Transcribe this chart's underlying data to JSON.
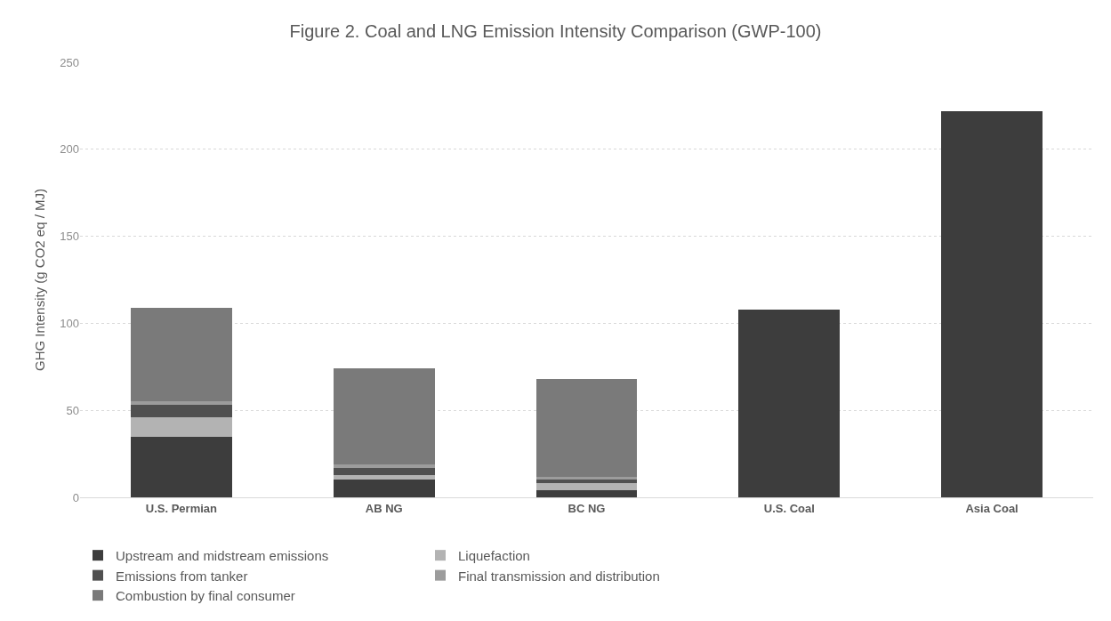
{
  "chart_data": {
    "type": "bar",
    "title": "Figure 2. Coal and LNG Emission Intensity Comparison (GWP-100)",
    "ylabel": "GHG Intensity (g CO2 eq / MJ)",
    "categories": [
      "U.S. Permian",
      "AB NG",
      "BC NG",
      "U.S. Coal",
      "Asia Coal"
    ],
    "stacked": true,
    "series": [
      {
        "name": "Upstream and midstream emissions",
        "color": "#3d3d3d",
        "values": [
          35,
          10,
          4,
          108,
          222
        ]
      },
      {
        "name": "Liquefaction",
        "color": "#b3b3b3",
        "values": [
          11,
          3,
          4,
          null,
          null
        ]
      },
      {
        "name": "Emissions from tanker",
        "color": "#505050",
        "values": [
          7,
          4,
          2,
          null,
          null
        ]
      },
      {
        "name": "Final transmission and distribution",
        "color": "#9c9c9c",
        "values": [
          2,
          2,
          2,
          null,
          null
        ]
      },
      {
        "name": "Combustion by final consumer",
        "color": "#7a7a7a",
        "values": [
          54,
          55,
          56,
          null,
          null
        ]
      }
    ],
    "ylim": [
      0,
      250
    ],
    "yticks": [
      0,
      50,
      100,
      150,
      200,
      250
    ],
    "grid": "y",
    "legend": "bottom"
  }
}
